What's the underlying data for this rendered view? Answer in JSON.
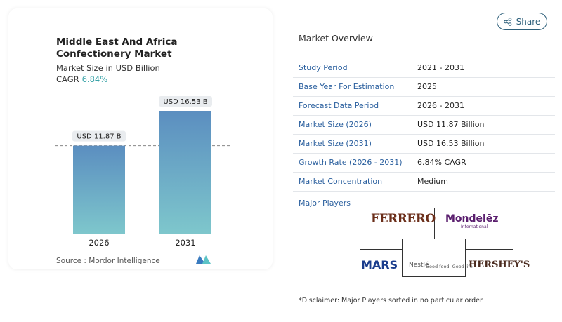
{
  "share": "Share",
  "chart_data": {
    "type": "bar",
    "title": "Middle East And Africa Confectionery Market",
    "subtitle": "Market Size in USD Billion",
    "cagr_label": "CAGR",
    "cagr": "6.84%",
    "categories": [
      "2026",
      "2031"
    ],
    "values": [
      11.87,
      16.53
    ],
    "value_labels": [
      "USD 11.87 B",
      "USD 16.53 B"
    ],
    "source": "Source : Mordor Intelligence"
  },
  "overview": {
    "title": "Market Overview",
    "rows": [
      [
        "Study Period",
        "2021 - 2031"
      ],
      [
        "Base Year For Estimation",
        "2025"
      ],
      [
        "Forecast Data Period",
        "2026 - 2031"
      ],
      [
        "Market Size (2026)",
        "USD 11.87 Billion"
      ],
      [
        "Market Size (2031)",
        "USD 16.53 Billion"
      ],
      [
        "Growth Rate (2026 - 2031)",
        "6.84% CAGR"
      ],
      [
        "Market Concentration",
        "Medium"
      ]
    ],
    "major_players_label": "Major Players",
    "major_players": [
      "FERRERO",
      "Mondelēz",
      "International",
      "MARS",
      "Nestlé",
      "Good food, Good life",
      "HERSHEY'S"
    ],
    "disclaimer": "*Disclaimer: Major Players sorted in no particular order"
  }
}
